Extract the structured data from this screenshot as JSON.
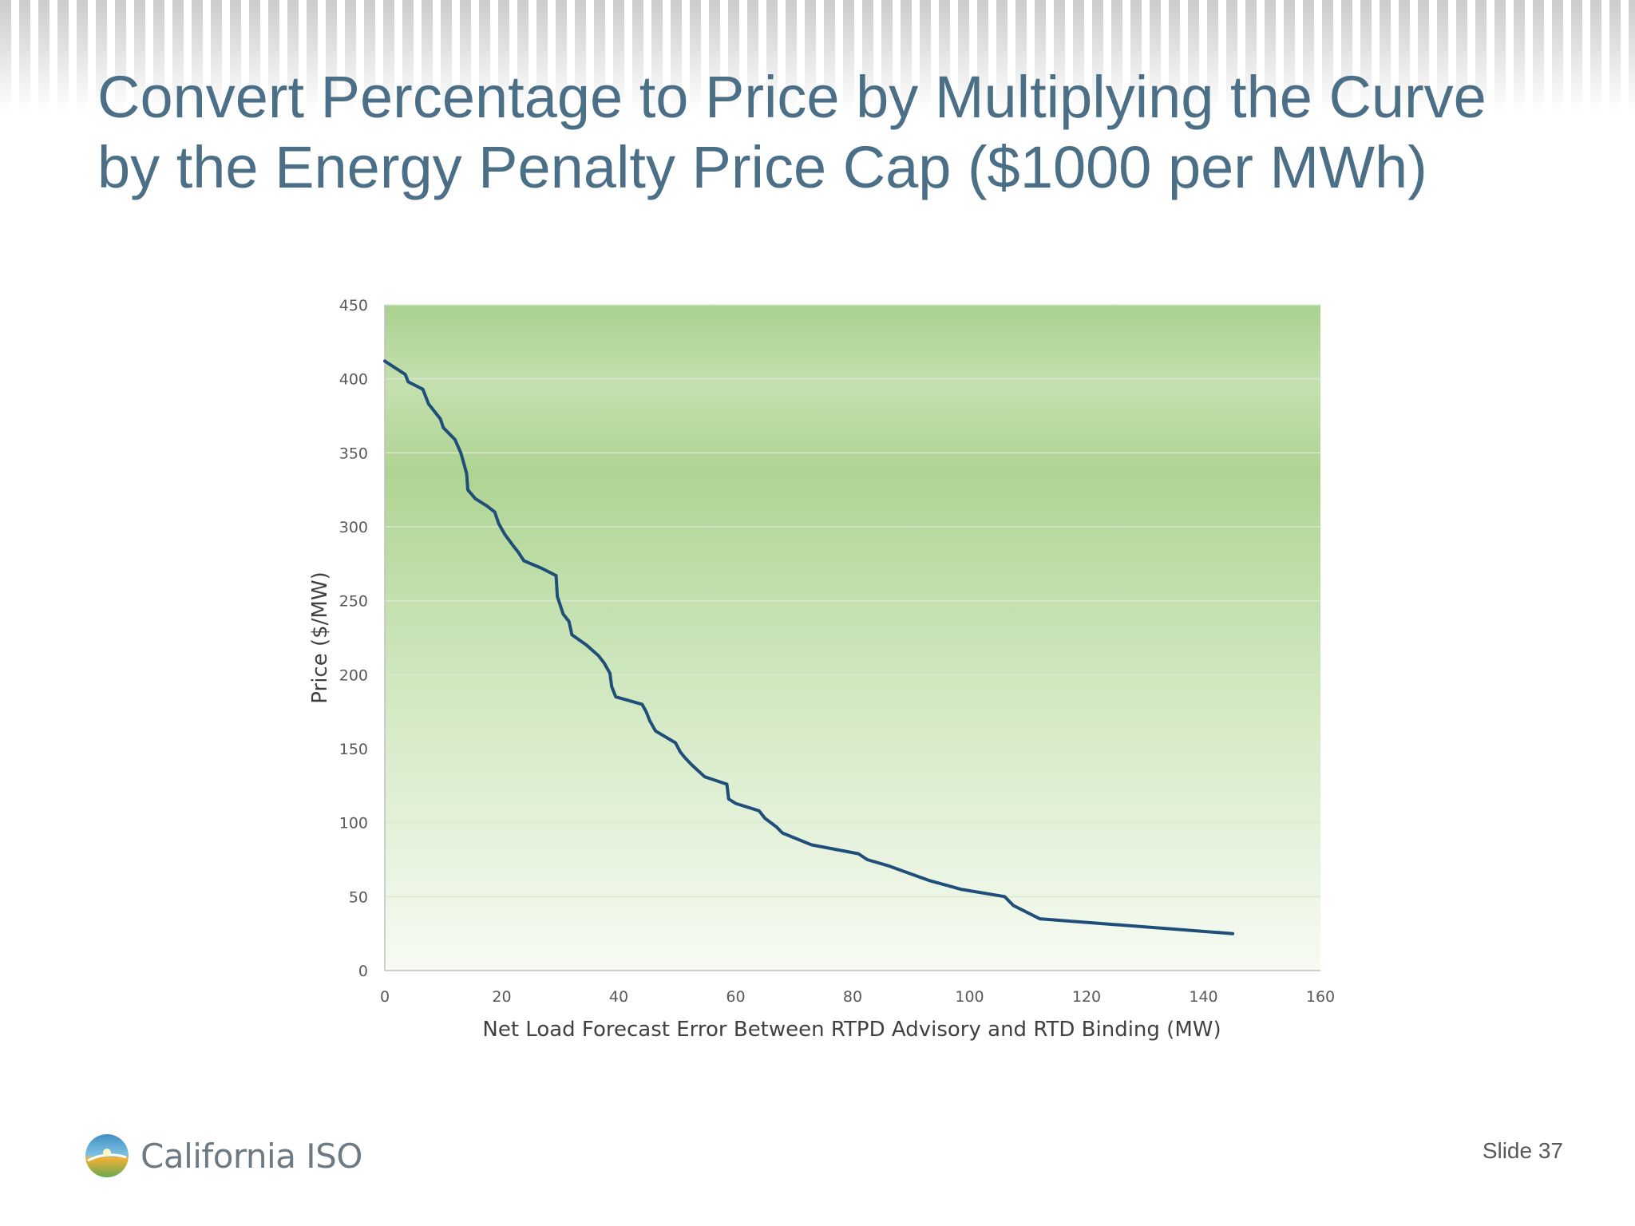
{
  "slide": {
    "title_lines": [
      "Convert Percentage to Price by Multiplying the Curve",
      "by the Energy Penalty Price Cap ($1000 per MWh)"
    ],
    "slide_number": "Slide 37",
    "logo_text": "California ISO",
    "logo_icon": "california-iso-sun-logo"
  },
  "colors": {
    "title": "#4a6f86",
    "line": "#1f4e79",
    "plot_top": "#a9d18e",
    "plot_bottom": "#f7fbf3",
    "gridline": "#d9e8cf"
  },
  "chart_data": {
    "type": "line",
    "xlabel": "Net Load Forecast Error Between RTPD Advisory and RTD Binding (MW)",
    "ylabel": "Price ($/MW)",
    "xlim": [
      0,
      160
    ],
    "ylim": [
      0,
      450
    ],
    "x_ticks": [
      "0",
      "20",
      "40",
      "60",
      "80",
      "100",
      "120",
      "140",
      "160"
    ],
    "y_ticks": [
      "0",
      "50",
      "100",
      "150",
      "200",
      "250",
      "300",
      "350",
      "400",
      "450"
    ],
    "grid": "horizontal",
    "legend": "none",
    "series": [
      {
        "x": [
          0,
          3.5,
          4,
          6.5,
          7.5,
          9.5,
          10,
          12,
          13,
          13.5,
          14,
          14.2,
          15.5,
          17.5,
          18.8,
          19.5,
          20.5,
          22,
          22.8,
          23.8,
          26.8,
          29.3,
          29.5,
          30.5,
          31.5,
          32,
          34.5,
          36.5,
          37.5,
          38.5,
          38.8,
          39.5,
          44,
          44.7,
          45.3,
          46.3,
          49.7,
          50.5,
          51.3,
          52.5,
          54.7,
          58.5,
          58.8,
          60,
          64,
          65,
          67,
          68,
          73,
          81,
          82.5,
          86,
          93,
          98.5,
          106,
          107.5,
          112,
          145
        ],
        "y": [
          412,
          403,
          398,
          393,
          383,
          373,
          367,
          359,
          350,
          343,
          336,
          325,
          319,
          314,
          310,
          302,
          295,
          287,
          283,
          277,
          272,
          267,
          253,
          241,
          236,
          227,
          220,
          213,
          208,
          201,
          192,
          185,
          180,
          175,
          169,
          162,
          154,
          148,
          144,
          139,
          131,
          126,
          116,
          113,
          108,
          103,
          97,
          93,
          85,
          79,
          75,
          71,
          61,
          55,
          50,
          44,
          35,
          25
        ]
      }
    ]
  }
}
